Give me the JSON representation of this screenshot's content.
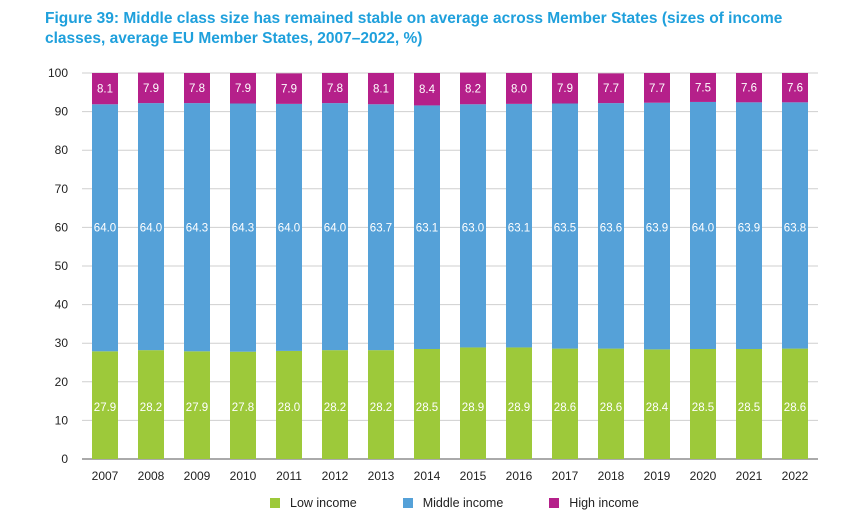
{
  "title": "Figure 39: Middle class size has remained stable on average across Member States (sizes of income classes, average EU Member States, 2007–2022, %)",
  "chart_data": {
    "type": "bar",
    "stacked": true,
    "title": "Figure 39: Middle class size has remained stable on average across Member States (sizes of income classes, average EU Member States, 2007–2022, %)",
    "xlabel": "",
    "ylabel": "",
    "ylim": [
      0,
      100
    ],
    "yticks": [
      0,
      10,
      20,
      30,
      40,
      50,
      60,
      70,
      80,
      90,
      100
    ],
    "grid": true,
    "legend_position": "bottom",
    "categories": [
      "2007",
      "2008",
      "2009",
      "2010",
      "2011",
      "2012",
      "2013",
      "2014",
      "2015",
      "2016",
      "2017",
      "2018",
      "2019",
      "2020",
      "2021",
      "2022"
    ],
    "series": [
      {
        "name": "Low income",
        "color": "#9dc93a",
        "values": [
          27.9,
          28.2,
          27.9,
          27.8,
          28.0,
          28.2,
          28.2,
          28.5,
          28.9,
          28.9,
          28.6,
          28.6,
          28.4,
          28.5,
          28.5,
          28.6
        ]
      },
      {
        "name": "Middle income",
        "color": "#55a1d8",
        "values": [
          64.0,
          64.0,
          64.3,
          64.3,
          64.0,
          64.0,
          63.7,
          63.1,
          63.0,
          63.1,
          63.5,
          63.6,
          63.9,
          64.0,
          63.9,
          63.8
        ]
      },
      {
        "name": "High income",
        "color": "#b5208a",
        "values": [
          8.1,
          7.9,
          7.8,
          7.9,
          7.9,
          7.8,
          8.1,
          8.4,
          8.2,
          8.0,
          7.9,
          7.7,
          7.7,
          7.5,
          7.6,
          7.6
        ]
      }
    ]
  }
}
